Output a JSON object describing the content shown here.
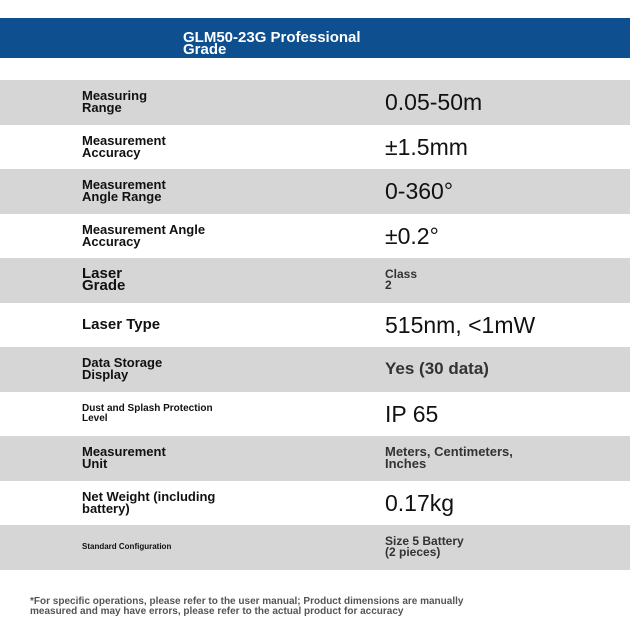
{
  "header": {
    "title": "GLM50-23G Professional\nGrade"
  },
  "table": {
    "rows": [
      [
        "Measuring\nRange",
        "0.05-50m"
      ],
      [
        "Measurement\nAccuracy",
        "±1.5mm"
      ],
      [
        "Measurement\nAngle Range",
        "0-360°"
      ],
      [
        "Measurement Angle\nAccuracy",
        "±0.2°"
      ],
      [
        "Laser\nGrade",
        "Class\n2"
      ],
      [
        "Laser Type",
        "515nm, <1mW"
      ],
      [
        "Data Storage\nDisplay",
        "Yes (30 data)"
      ],
      [
        "Dust and Splash Protection\nLevel",
        "IP 65"
      ],
      [
        "Measurement\nUnit",
        "Meters, Centimeters,\nInches"
      ],
      [
        "Net Weight (including\nbattery)",
        "0.17kg"
      ],
      [
        "Standard Configuration",
        "Size 5 Battery\n(2 pieces)"
      ]
    ]
  },
  "footer": {
    "note": "*For specific operations, please refer to the user manual; Product dimensions are manually\nmeasured and may have errors, please refer to the actual product for accuracy"
  }
}
